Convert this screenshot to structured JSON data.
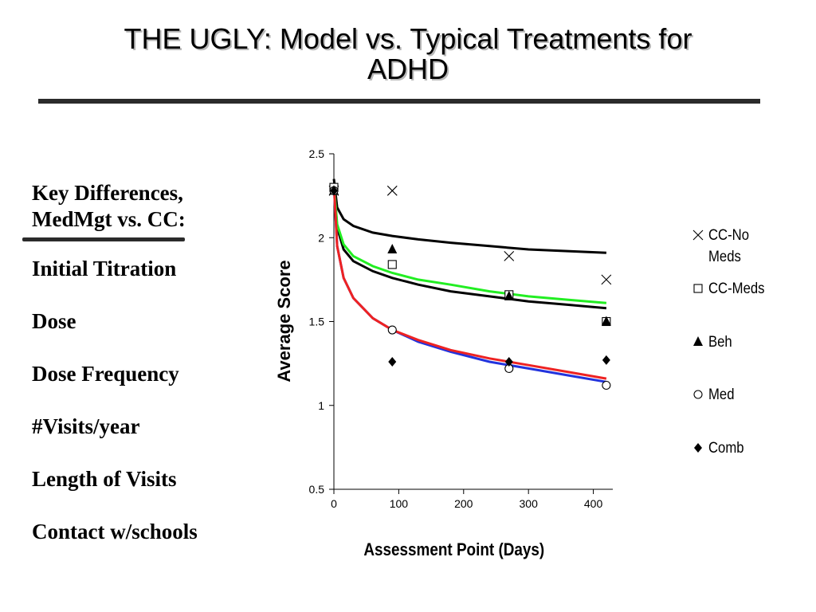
{
  "slide": {
    "title_lines": [
      "THE UGLY: Model vs. Typical Treatments for",
      "ADHD"
    ]
  },
  "left_panel": {
    "heading_lines": [
      "Key Differences,",
      "MedMgt vs. CC:"
    ],
    "items": [
      "Initial Titration",
      "Dose",
      "Dose Frequency",
      "#Visits/year",
      "Length of Visits",
      "Contact w/schools"
    ]
  },
  "chart_data": {
    "type": "scatter",
    "title": "",
    "xlabel": "Assessment Point (Days)",
    "ylabel": "Average Score",
    "xlim": [
      0,
      430
    ],
    "ylim": [
      0.5,
      2.5
    ],
    "xticks": [
      0,
      100,
      200,
      300,
      400
    ],
    "yticks": [
      0.5,
      1,
      1.5,
      2,
      2.5
    ],
    "ytick_labels": [
      "0.5",
      "1",
      "1.5",
      "2",
      "2.5"
    ],
    "grid": false,
    "legend_position": "right",
    "series": [
      {
        "name": "CC-No Meds",
        "marker": "x",
        "points": [
          [
            0,
            2.28
          ],
          [
            90,
            2.28
          ],
          [
            270,
            1.89
          ],
          [
            420,
            1.75
          ]
        ],
        "fit_color": "#000000",
        "fit_curve": [
          [
            0,
            2.35
          ],
          [
            5,
            2.18
          ],
          [
            15,
            2.11
          ],
          [
            30,
            2.07
          ],
          [
            60,
            2.03
          ],
          [
            90,
            2.01
          ],
          [
            130,
            1.99
          ],
          [
            180,
            1.97
          ],
          [
            240,
            1.95
          ],
          [
            300,
            1.93
          ],
          [
            360,
            1.92
          ],
          [
            420,
            1.91
          ]
        ]
      },
      {
        "name": "CC-Meds",
        "marker": "square",
        "points": [
          [
            0,
            2.3
          ],
          [
            90,
            1.84
          ],
          [
            270,
            1.66
          ],
          [
            420,
            1.5
          ]
        ],
        "fit_color": "#000000",
        "fit_curve": [
          [
            0,
            2.32
          ],
          [
            5,
            2.06
          ],
          [
            15,
            1.93
          ],
          [
            30,
            1.86
          ],
          [
            60,
            1.8
          ],
          [
            90,
            1.76
          ],
          [
            130,
            1.72
          ],
          [
            180,
            1.68
          ],
          [
            240,
            1.65
          ],
          [
            300,
            1.62
          ],
          [
            360,
            1.6
          ],
          [
            420,
            1.58
          ]
        ]
      },
      {
        "name": "Beh",
        "marker": "triangle",
        "points": [
          [
            0,
            2.28
          ],
          [
            90,
            1.93
          ],
          [
            270,
            1.65
          ],
          [
            420,
            1.5
          ]
        ],
        "fit_color": "#22ee22",
        "fit_curve": [
          [
            0,
            2.32
          ],
          [
            5,
            2.08
          ],
          [
            15,
            1.96
          ],
          [
            30,
            1.89
          ],
          [
            60,
            1.83
          ],
          [
            90,
            1.79
          ],
          [
            130,
            1.75
          ],
          [
            180,
            1.72
          ],
          [
            240,
            1.68
          ],
          [
            300,
            1.65
          ],
          [
            360,
            1.63
          ],
          [
            420,
            1.61
          ]
        ]
      },
      {
        "name": "Med",
        "marker": "circle",
        "points": [
          [
            0,
            2.28
          ],
          [
            90,
            1.45
          ],
          [
            270,
            1.22
          ],
          [
            420,
            1.12
          ]
        ],
        "fit_color": "#2233dd",
        "fit_curve": [
          [
            0,
            2.32
          ],
          [
            5,
            1.95
          ],
          [
            15,
            1.76
          ],
          [
            30,
            1.64
          ],
          [
            60,
            1.52
          ],
          [
            90,
            1.45
          ],
          [
            130,
            1.38
          ],
          [
            180,
            1.32
          ],
          [
            240,
            1.26
          ],
          [
            300,
            1.22
          ],
          [
            360,
            1.18
          ],
          [
            420,
            1.14
          ]
        ]
      },
      {
        "name": "Comb",
        "marker": "diamond",
        "points": [
          [
            0,
            2.28
          ],
          [
            90,
            1.26
          ],
          [
            270,
            1.26
          ],
          [
            420,
            1.27
          ]
        ],
        "fit_color": "#ee2222",
        "fit_curve": [
          [
            0,
            2.32
          ],
          [
            5,
            1.95
          ],
          [
            15,
            1.76
          ],
          [
            30,
            1.64
          ],
          [
            60,
            1.52
          ],
          [
            90,
            1.45
          ],
          [
            130,
            1.39
          ],
          [
            180,
            1.33
          ],
          [
            240,
            1.28
          ],
          [
            300,
            1.24
          ],
          [
            360,
            1.2
          ],
          [
            420,
            1.16
          ]
        ]
      }
    ],
    "legend_lines": [
      [
        "CC-No",
        "Meds"
      ],
      [
        "CC-Meds"
      ],
      [
        "Beh"
      ],
      [
        "Med"
      ],
      [
        "Comb"
      ]
    ]
  }
}
